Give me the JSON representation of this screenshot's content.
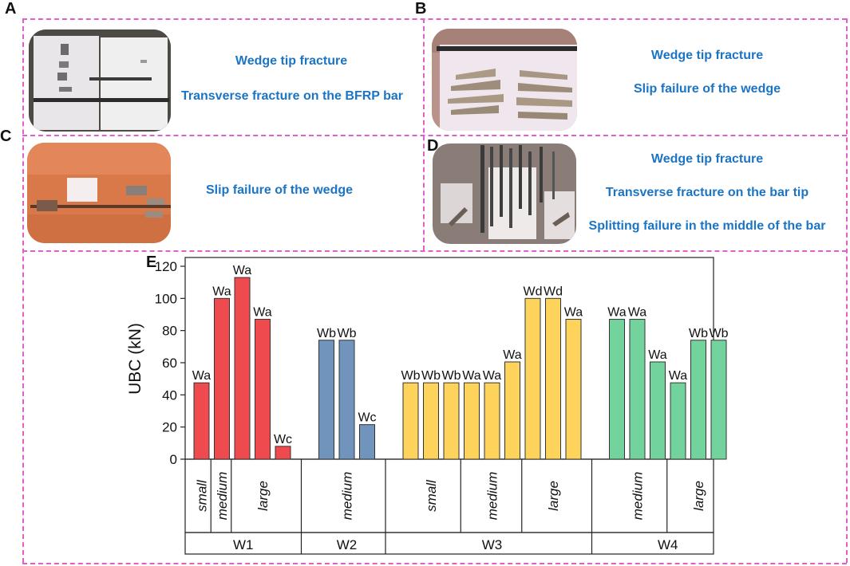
{
  "panels": {
    "A": {
      "letter": "A",
      "captions": [
        "Wedge tip fracture",
        "Transverse fracture on the BFRP bar"
      ]
    },
    "B": {
      "letter": "B",
      "captions": [
        "Wedge tip fracture",
        "Slip failure of the wedge"
      ]
    },
    "C": {
      "letter": "C",
      "captions": [
        "Slip failure of the wedge"
      ]
    },
    "D": {
      "letter": "D",
      "captions": [
        "Wedge tip fracture",
        "Transverse fracture on the bar tip",
        "Splitting failure in the middle of the bar"
      ]
    },
    "E": {
      "letter": "E"
    }
  },
  "colors": {
    "dashed_border": "#e060c8",
    "caption": "#1b74c4",
    "W1": "#ef4b4f",
    "W2": "#7194bd",
    "W3": "#fdd35b",
    "W4": "#73d39c"
  },
  "chart_data": {
    "type": "bar",
    "ylabel": "UBC (kN)",
    "ylim": [
      0,
      120
    ],
    "yticks": [
      0,
      20,
      40,
      60,
      80,
      100,
      120
    ],
    "groups": [
      {
        "name": "W1",
        "color_key": "W1",
        "subgroups": [
          {
            "name": "small",
            "bars": [
              {
                "value": 47.5,
                "label": "Wa"
              }
            ]
          },
          {
            "name": "medium",
            "bars": [
              {
                "value": 100,
                "label": "Wa"
              }
            ]
          },
          {
            "name": "large",
            "bars": [
              {
                "value": 113,
                "label": "Wa"
              },
              {
                "value": 87,
                "label": "Wa"
              },
              {
                "value": 8,
                "label": "Wc"
              }
            ]
          }
        ]
      },
      {
        "name": "W2",
        "color_key": "W2",
        "subgroups": [
          {
            "name": "medium",
            "bars": [
              {
                "value": 74,
                "label": "Wb"
              },
              {
                "value": 74,
                "label": "Wb"
              },
              {
                "value": 21.5,
                "label": "Wc"
              }
            ]
          }
        ]
      },
      {
        "name": "W3",
        "color_key": "W3",
        "subgroups": [
          {
            "name": "small",
            "bars": [
              {
                "value": 47.5,
                "label": "Wb"
              },
              {
                "value": 47.5,
                "label": "Wb"
              },
              {
                "value": 47.5,
                "label": "Wb"
              }
            ]
          },
          {
            "name": "medium",
            "bars": [
              {
                "value": 47.5,
                "label": "Wa"
              },
              {
                "value": 47.5,
                "label": "Wa"
              },
              {
                "value": 60.5,
                "label": "Wa"
              }
            ]
          },
          {
            "name": "large",
            "bars": [
              {
                "value": 100,
                "label": "Wd"
              },
              {
                "value": 100,
                "label": "Wd"
              },
              {
                "value": 87,
                "label": "Wa"
              }
            ]
          }
        ]
      },
      {
        "name": "W4",
        "color_key": "W4",
        "subgroups": [
          {
            "name": "medium",
            "bars": [
              {
                "value": 87,
                "label": "Wa"
              },
              {
                "value": 87,
                "label": "Wa"
              },
              {
                "value": 60.5,
                "label": "Wa"
              }
            ]
          },
          {
            "name": "large",
            "bars": [
              {
                "value": 47.5,
                "label": "Wa"
              },
              {
                "value": 74,
                "label": "Wb"
              },
              {
                "value": 74,
                "label": "Wb"
              }
            ]
          }
        ]
      }
    ]
  }
}
